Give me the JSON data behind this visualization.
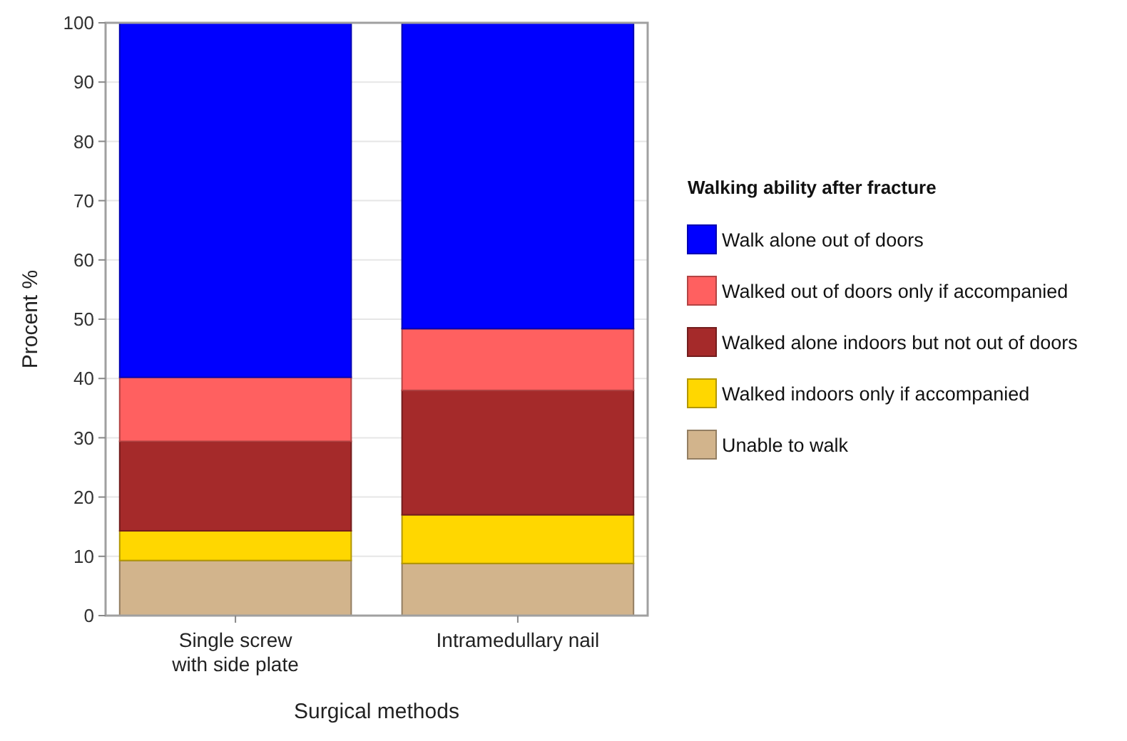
{
  "chart_data": {
    "type": "bar",
    "stacked": true,
    "xlabel": "Surgical methods",
    "ylabel": "Procent %",
    "legend_title": "Walking ability after fracture",
    "legend": "right",
    "grid": "y",
    "categories": [
      "Single screw\nwith side plate",
      "Intramedullary nail"
    ],
    "ylim": [
      0,
      100
    ],
    "yticks": [
      0,
      10,
      20,
      30,
      40,
      50,
      60,
      70,
      80,
      90,
      100
    ],
    "series": [
      {
        "name": "Unable to walk",
        "color": "#d2b48c",
        "values": [
          9.3,
          8.8
        ]
      },
      {
        "name": "Walked indoors only if accompanied",
        "color": "#ffd700",
        "values": [
          5.0,
          8.2
        ]
      },
      {
        "name": "Walked alone indoors but not out of doors",
        "color": "#a52a2a",
        "values": [
          15.1,
          21.0
        ]
      },
      {
        "name": "Walked out of doors only if accompanied",
        "color": "#ff6060",
        "values": [
          10.8,
          10.4
        ]
      },
      {
        "name": "Walk alone out of doors",
        "color": "#0000ff",
        "values": [
          59.8,
          51.6
        ]
      }
    ]
  }
}
